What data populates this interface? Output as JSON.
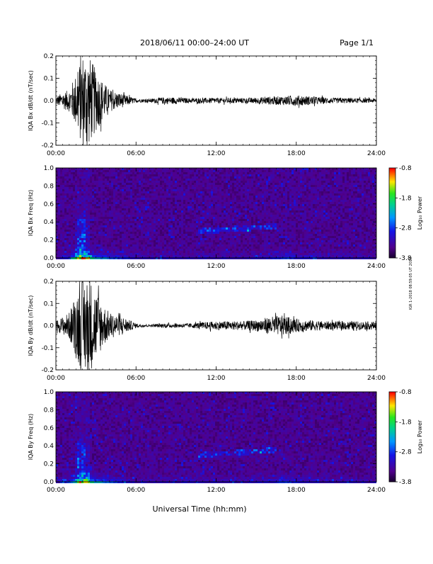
{
  "header": {
    "title": "2018/06/11  00:00–24:00 UT",
    "page": "Page 1/1"
  },
  "x_axis_title": "Universal Time (hh:mm)",
  "side_stamp": "IGR 1-2018 08:59:05 UT 2019",
  "colorbar": {
    "label": "Log₁₀ Power",
    "ticks": [
      "-0.8",
      "-1.8",
      "-2.8",
      "-3.8"
    ]
  },
  "chart_data": [
    {
      "type": "line",
      "ylabel": "IQA Bx dB/dt (nT/sec)",
      "xlim": [
        0,
        24
      ],
      "ylim": [
        -0.2,
        0.2
      ],
      "x_ticks": [
        "00:00",
        "06:00",
        "12:00",
        "18:00",
        "24:00"
      ],
      "y_ticks": [
        "0.2",
        "0.1",
        "0.0",
        "-0.1",
        "-0.2"
      ],
      "envelope": {
        "hours": [
          0,
          1,
          1.5,
          2,
          2.5,
          3,
          3.5,
          4,
          4.5,
          5,
          6,
          7,
          8,
          9,
          10,
          11,
          12,
          13,
          14,
          15,
          16,
          17,
          18,
          19,
          20,
          21,
          22,
          23,
          24
        ],
        "amplitude": [
          0.02,
          0.05,
          0.12,
          0.22,
          0.2,
          0.14,
          0.09,
          0.05,
          0.04,
          0.03,
          0.008,
          0.008,
          0.015,
          0.015,
          0.01,
          0.012,
          0.012,
          0.012,
          0.012,
          0.014,
          0.018,
          0.02,
          0.024,
          0.02,
          0.015,
          0.012,
          0.012,
          0.01,
          0.01
        ]
      }
    },
    {
      "type": "heatmap",
      "ylabel": "IQA Bx Freq (Hz)",
      "xlim": [
        0,
        24
      ],
      "ylim": [
        0,
        1
      ],
      "x_ticks": [
        "00:00",
        "06:00",
        "12:00",
        "18:00",
        "24:00"
      ],
      "y_ticks": [
        "1.0",
        "0.8",
        "0.6",
        "0.4",
        "0.2",
        "0.0"
      ],
      "color_range": [
        -3.8,
        -0.8
      ]
    },
    {
      "type": "line",
      "ylabel": "IQA By dB/dt (nT/sec)",
      "xlim": [
        0,
        24
      ],
      "ylim": [
        -0.2,
        0.2
      ],
      "x_ticks": [
        "00:00",
        "06:00",
        "12:00",
        "18:00",
        "24:00"
      ],
      "y_ticks": [
        "0.2",
        "0.1",
        "0.0",
        "-0.1",
        "-0.2"
      ],
      "envelope": {
        "hours": [
          0,
          1,
          1.5,
          2,
          2.5,
          3,
          3.5,
          4,
          4.5,
          5,
          6,
          7,
          8,
          9,
          10,
          11,
          12,
          13,
          14,
          15,
          16,
          17,
          18,
          19,
          20,
          21,
          22,
          23,
          24
        ],
        "amplitude": [
          0.02,
          0.06,
          0.15,
          0.22,
          0.22,
          0.16,
          0.1,
          0.06,
          0.05,
          0.04,
          0.01,
          0.005,
          0.01,
          0.01,
          0.01,
          0.015,
          0.02,
          0.02,
          0.02,
          0.025,
          0.04,
          0.045,
          0.03,
          0.025,
          0.02,
          0.018,
          0.02,
          0.018,
          0.018
        ]
      }
    },
    {
      "type": "heatmap",
      "ylabel": "IQA By Freq (Hz)",
      "xlim": [
        0,
        24
      ],
      "ylim": [
        0,
        1
      ],
      "x_ticks": [
        "00:00",
        "06:00",
        "12:00",
        "18:00",
        "24:00"
      ],
      "y_ticks": [
        "1.0",
        "0.8",
        "0.6",
        "0.4",
        "0.2",
        "0.0"
      ],
      "color_range": [
        -3.8,
        -0.8
      ]
    }
  ]
}
